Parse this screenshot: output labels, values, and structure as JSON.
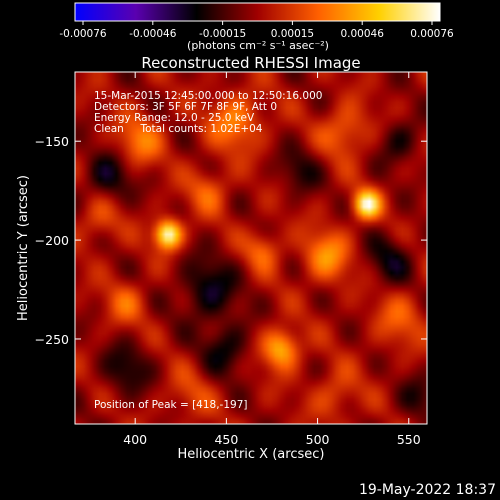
{
  "colorbar": {
    "ticks": [
      "-0.00076",
      "-0.00046",
      "-0.00015",
      "0.00015",
      "0.00046",
      "0.00076"
    ],
    "unit_label": "(photons cm⁻² s⁻¹ asec⁻²)",
    "colors": [
      "#0000ff",
      "#5a00b0",
      "#000000",
      "#a00000",
      "#ff6000",
      "#ffd000",
      "#ffffff"
    ]
  },
  "chart_data": {
    "type": "heatmap",
    "title": "Reconstructed RHESSI Image",
    "xlabel": "Heliocentric X (arcsec)",
    "ylabel": "Heliocentric Y (arcsec)",
    "xlim": [
      367,
      560
    ],
    "ylim": [
      -293,
      -115
    ],
    "xticks": [
      400,
      450,
      500,
      550
    ],
    "yticks": [
      -150,
      -200,
      -250
    ],
    "vrange": [
      -0.00076,
      0.00076
    ],
    "info_lines": [
      "15-Mar-2015 12:45:00.000 to 12:50:16.000",
      "Detectors: 3F 5F 6F 7F 8F 9F, Att 0",
      "Energy Range: 12.0 - 25.0 keV",
      "Clean     Total counts: 1.02E+04"
    ],
    "peak_text": "Position of Peak = [418,-197]",
    "peak": {
      "x": 418,
      "y": -197
    },
    "sources": [
      {
        "x": 418,
        "y": -197,
        "amp": 1.0,
        "sigma": 5
      },
      {
        "x": 527,
        "y": -182,
        "amp": 0.92,
        "sigma": 5
      },
      {
        "x": 480,
        "y": -255,
        "amp": 0.62,
        "sigma": 7
      },
      {
        "x": 505,
        "y": -208,
        "amp": 0.45,
        "sigma": 9
      },
      {
        "x": 402,
        "y": -150,
        "amp": 0.38,
        "sigma": 9
      },
      {
        "x": 455,
        "y": -140,
        "amp": 0.42,
        "sigma": 10
      },
      {
        "x": 515,
        "y": -145,
        "amp": 0.35,
        "sigma": 9
      },
      {
        "x": 395,
        "y": -232,
        "amp": 0.28,
        "sigma": 8
      },
      {
        "x": 440,
        "y": -175,
        "amp": 0.3,
        "sigma": 8
      },
      {
        "x": 470,
        "y": -205,
        "amp": 0.33,
        "sigma": 7
      },
      {
        "x": 545,
        "y": -240,
        "amp": 0.27,
        "sigma": 10
      },
      {
        "x": 510,
        "y": -278,
        "amp": 0.25,
        "sigma": 9
      },
      {
        "x": 430,
        "y": -278,
        "amp": 0.2,
        "sigma": 9
      },
      {
        "x": 380,
        "y": -190,
        "amp": 0.25,
        "sigma": 8
      }
    ],
    "negative_regions": [
      {
        "x": 385,
        "y": -168,
        "amp": -0.35,
        "sigma": 9
      },
      {
        "x": 440,
        "y": -225,
        "amp": -0.38,
        "sigma": 11
      },
      {
        "x": 450,
        "y": -255,
        "amp": -0.32,
        "sigma": 9
      },
      {
        "x": 540,
        "y": -210,
        "amp": -0.3,
        "sigma": 9
      },
      {
        "x": 545,
        "y": -150,
        "amp": -0.28,
        "sigma": 8
      },
      {
        "x": 490,
        "y": -165,
        "amp": -0.25,
        "sigma": 8
      },
      {
        "x": 395,
        "y": -265,
        "amp": -0.3,
        "sigma": 9
      },
      {
        "x": 555,
        "y": -280,
        "amp": -0.22,
        "sigma": 8
      }
    ]
  },
  "footer": {
    "date": "19-May-2022 18:37"
  }
}
